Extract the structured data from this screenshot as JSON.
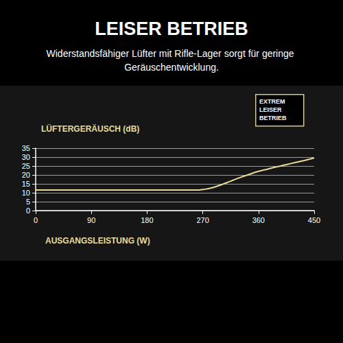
{
  "chart_data": {
    "type": "line",
    "title": "LEISER BETRIEB",
    "subtitle": "Widerstandsfähiger Lüfter mit Rifle-Lager sorgt für geringe Geräuschentwicklung.",
    "annotation": "EXTREM LEISER BETRIEB",
    "y_label": "LÜFTERGERÄUSCH (dB)",
    "x_label": "AUSGANGSLEISTUNG (W)",
    "x": [
      0,
      90,
      180,
      260,
      270,
      285,
      300,
      315,
      330,
      345,
      360,
      375,
      390,
      405,
      420,
      435,
      450
    ],
    "values": [
      11.5,
      11.5,
      11.5,
      11.5,
      11.8,
      12.8,
      14.5,
      16.5,
      18.5,
      20.3,
      22,
      23.3,
      24.6,
      25.8,
      27,
      28.2,
      29.5
    ],
    "color": "#e8dc9a",
    "xlim": [
      0,
      450
    ],
    "xticks": [
      0,
      90,
      180,
      270,
      360,
      450
    ],
    "ylim": [
      0,
      35
    ],
    "yticks": [
      0,
      5,
      10,
      15,
      20,
      25,
      30,
      35
    ],
    "grid": true
  }
}
